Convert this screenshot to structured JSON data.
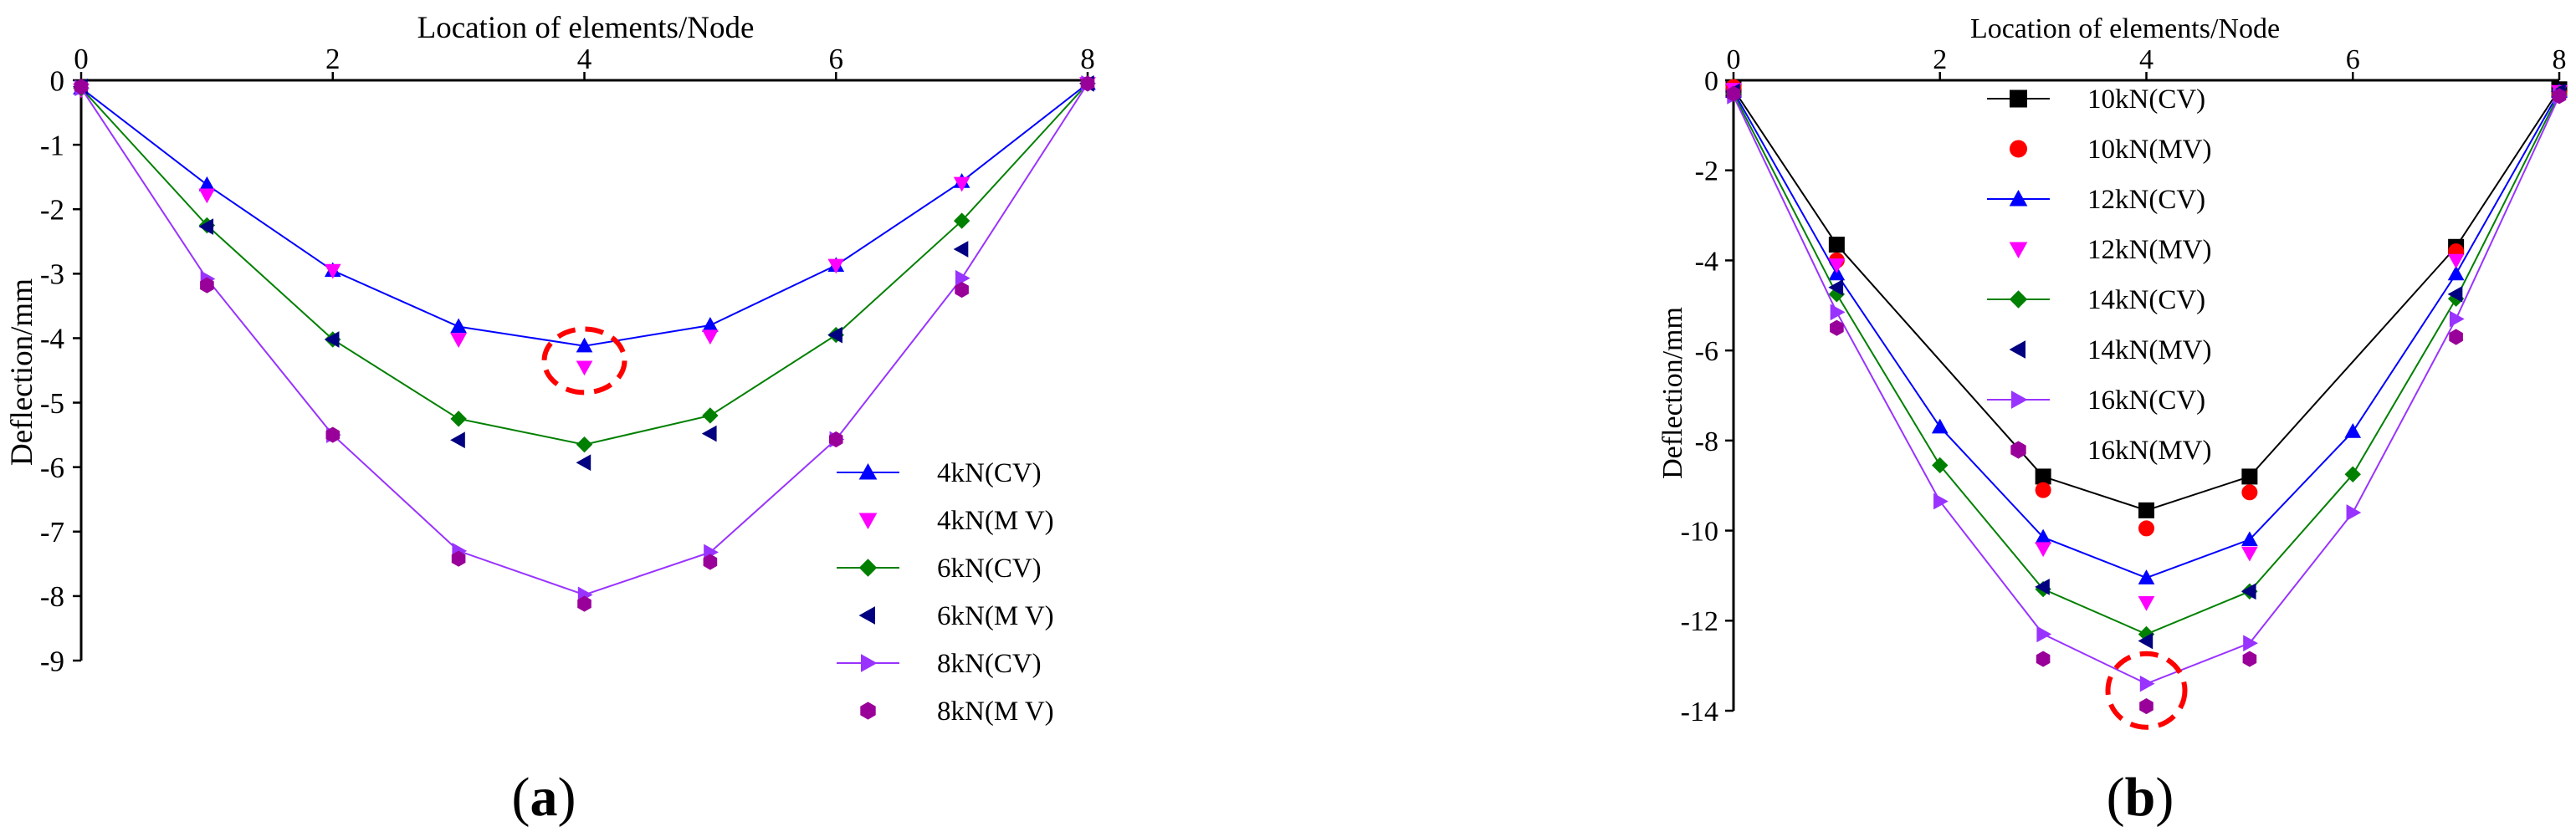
{
  "chart_data": [
    {
      "panel_label_prefix": "(",
      "panel_label": "a",
      "panel_label_suffix": ")",
      "type": "line",
      "title": "",
      "xlabel": "Location of elements/Node",
      "ylabel": "Deflection/mm",
      "x_axis_position": "top",
      "xlim": [
        0,
        8
      ],
      "ylim": [
        -9,
        0
      ],
      "xticks": [
        0,
        2,
        4,
        6,
        8
      ],
      "yticks": [
        0,
        -1,
        -2,
        -3,
        -4,
        -5,
        -6,
        -7,
        -8,
        -9
      ],
      "xtick_labels": [
        "0",
        "2",
        "4",
        "6",
        "8"
      ],
      "ytick_labels": [
        "0",
        "-1",
        "-2",
        "-3",
        "-4",
        "-5",
        "-6",
        "-7",
        "-8",
        "-9"
      ],
      "grid": false,
      "legend_position": "bottom-right",
      "highlight": {
        "x": 4,
        "y": -4.35,
        "shape": "dashed-circle",
        "color": "#ff0000"
      },
      "series": [
        {
          "name": "4kN(CV)",
          "color": "#0000ff",
          "marker": "triangle-up",
          "line": true,
          "x": [
            0,
            1,
            2,
            3,
            4,
            5,
            6,
            7,
            8
          ],
          "y": [
            -0.12,
            -1.62,
            -2.95,
            -3.82,
            -4.12,
            -3.8,
            -2.87,
            -1.57,
            -0.05
          ]
        },
        {
          "name": "4kN(M V)",
          "color": "#ff00ff",
          "marker": "triangle-down",
          "line": false,
          "x": [
            0,
            1,
            2,
            3,
            4,
            5,
            6,
            7,
            8
          ],
          "y": [
            -0.15,
            -1.78,
            -2.95,
            -4.02,
            -4.45,
            -3.97,
            -2.87,
            -1.6,
            -0.05
          ]
        },
        {
          "name": "6kN(CV)",
          "color": "#008000",
          "marker": "diamond",
          "line": true,
          "x": [
            0,
            1,
            2,
            3,
            4,
            5,
            6,
            7,
            8
          ],
          "y": [
            -0.12,
            -2.25,
            -4.02,
            -5.25,
            -5.65,
            -5.2,
            -3.95,
            -2.18,
            -0.05
          ]
        },
        {
          "name": "6kN(M V)",
          "color": "#000080",
          "marker": "triangle-left",
          "line": false,
          "x": [
            0,
            1,
            2,
            3,
            4,
            5,
            6,
            7,
            8
          ],
          "y": [
            -0.1,
            -2.27,
            -4.02,
            -5.58,
            -5.93,
            -5.48,
            -3.95,
            -2.62,
            -0.05
          ]
        },
        {
          "name": "8kN(CV)",
          "color": "#9933ff",
          "marker": "triangle-right",
          "line": true,
          "x": [
            0,
            1,
            2,
            3,
            4,
            5,
            6,
            7,
            8
          ],
          "y": [
            -0.12,
            -3.08,
            -5.5,
            -7.3,
            -7.98,
            -7.32,
            -5.57,
            -3.07,
            -0.05
          ]
        },
        {
          "name": "8kN(M V)",
          "color": "#990099",
          "marker": "hexagon",
          "line": false,
          "x": [
            0,
            1,
            2,
            3,
            4,
            5,
            6,
            7,
            8
          ],
          "y": [
            -0.1,
            -3.18,
            -5.5,
            -7.42,
            -8.12,
            -7.47,
            -5.57,
            -3.25,
            -0.05
          ]
        }
      ]
    },
    {
      "panel_label_prefix": "(",
      "panel_label": "b",
      "panel_label_suffix": ")",
      "type": "line",
      "title": "",
      "xlabel": "Location of elements/Node",
      "ylabel": "Deflection/mm",
      "x_axis_position": "top",
      "xlim": [
        0,
        8
      ],
      "ylim": [
        -14,
        0
      ],
      "xticks": [
        0,
        2,
        4,
        6,
        8
      ],
      "yticks": [
        0,
        -2,
        -4,
        -6,
        -8,
        -10,
        -12,
        -14
      ],
      "xtick_labels": [
        "0",
        "2",
        "4",
        "6",
        "8"
      ],
      "ytick_labels": [
        "0",
        "-2",
        "-4",
        "-6",
        "-8",
        "-10",
        "-12",
        "-14"
      ],
      "grid": false,
      "legend_position": "top-center",
      "highlight": {
        "x": 4,
        "y": -13.55,
        "shape": "dashed-circle",
        "color": "#ff0000"
      },
      "series": [
        {
          "name": "10kN(CV)",
          "color": "#000000",
          "marker": "square",
          "line": true,
          "x": [
            0,
            1,
            3,
            4,
            5,
            7,
            8
          ],
          "y": [
            -0.2,
            -3.65,
            -8.8,
            -9.55,
            -8.8,
            -3.7,
            -0.2
          ]
        },
        {
          "name": "10kN(MV)",
          "color": "#ff0000",
          "marker": "circle",
          "line": false,
          "x": [
            0,
            1,
            3,
            4,
            5,
            7,
            8
          ],
          "y": [
            -0.15,
            -4.0,
            -9.1,
            -9.95,
            -9.15,
            -3.8,
            -0.3
          ]
        },
        {
          "name": "12kN(CV)",
          "color": "#0000ff",
          "marker": "triangle-up",
          "line": true,
          "x": [
            0,
            1,
            2,
            3,
            4,
            5,
            6,
            7,
            8
          ],
          "y": [
            -0.25,
            -4.3,
            -7.7,
            -10.15,
            -11.05,
            -10.2,
            -7.8,
            -4.3,
            -0.25
          ]
        },
        {
          "name": "12kN(MV)",
          "color": "#ff00ff",
          "marker": "triangle-down",
          "line": false,
          "x": [
            0,
            1,
            3,
            4,
            5,
            7,
            8
          ],
          "y": [
            -0.2,
            -4.1,
            -10.4,
            -11.6,
            -10.5,
            -4.0,
            -0.25
          ]
        },
        {
          "name": "14kN(CV)",
          "color": "#008000",
          "marker": "diamond",
          "line": true,
          "x": [
            0,
            1,
            2,
            3,
            4,
            5,
            6,
            7,
            8
          ],
          "y": [
            -0.3,
            -4.75,
            -8.55,
            -11.3,
            -12.3,
            -11.35,
            -8.75,
            -4.85,
            -0.3
          ]
        },
        {
          "name": "14kN(MV)",
          "color": "#000080",
          "marker": "triangle-left",
          "line": false,
          "x": [
            0,
            1,
            3,
            4,
            5,
            7,
            8
          ],
          "y": [
            -0.25,
            -4.6,
            -11.25,
            -12.45,
            -11.35,
            -4.75,
            -0.25
          ]
        },
        {
          "name": "16kN(CV)",
          "color": "#9933ff",
          "marker": "triangle-right",
          "line": true,
          "x": [
            0,
            1,
            2,
            3,
            4,
            5,
            6,
            7,
            8
          ],
          "y": [
            -0.35,
            -5.15,
            -9.35,
            -12.3,
            -13.4,
            -12.5,
            -9.6,
            -5.3,
            -0.35
          ]
        },
        {
          "name": "16kN(MV)",
          "color": "#990099",
          "marker": "hexagon",
          "line": false,
          "x": [
            0,
            1,
            3,
            4,
            5,
            7,
            8
          ],
          "y": [
            -0.3,
            -5.5,
            -12.85,
            -13.9,
            -12.85,
            -5.7,
            -0.35
          ]
        }
      ]
    }
  ]
}
